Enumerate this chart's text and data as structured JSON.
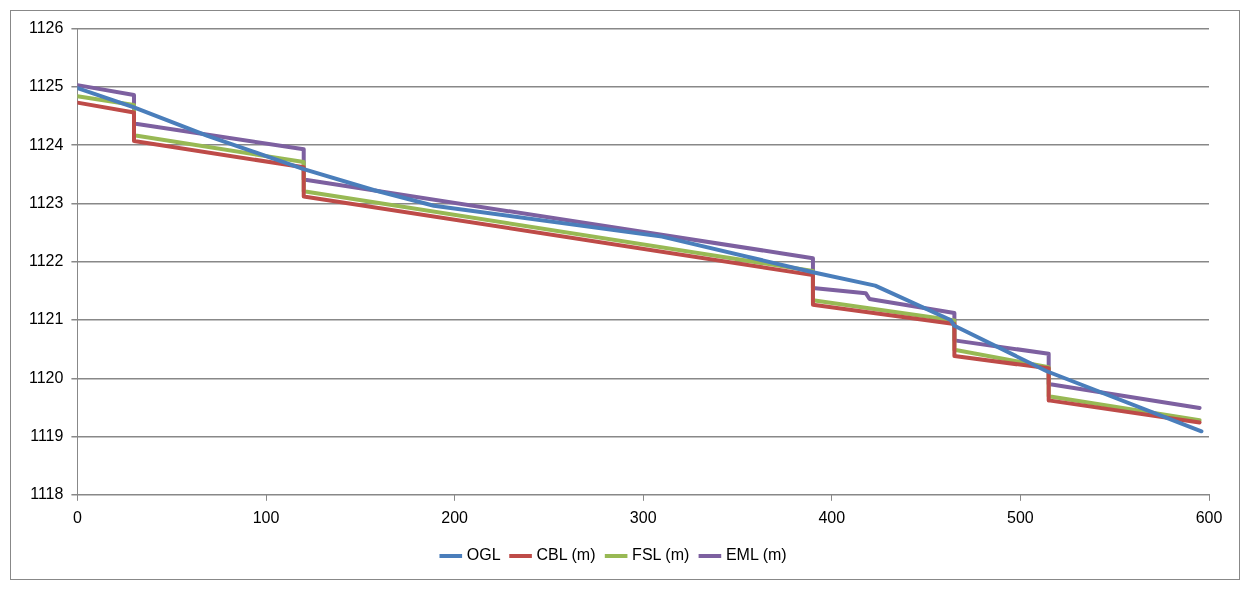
{
  "chart_data": {
    "type": "line",
    "legend": "bottom",
    "grid": "y",
    "marker": "none",
    "line_style": "solid",
    "xlim": [
      0,
      600
    ],
    "xticks": [
      0,
      100,
      200,
      300,
      400,
      500,
      600
    ],
    "ylim": [
      1118,
      1126
    ],
    "yticks": [
      1118,
      1119,
      1120,
      1121,
      1122,
      1123,
      1124,
      1125,
      1126
    ],
    "series": [
      {
        "name": "OGL",
        "color": "#4a7ebb",
        "x": [
          0,
          30,
          69,
          120,
          157,
          189,
          310,
          390,
          423,
          463,
          465,
          514,
          596
        ],
        "values": [
          1124.98,
          1124.65,
          1124.16,
          1123.59,
          1123.23,
          1122.96,
          1122.43,
          1121.82,
          1121.59,
          1121.0,
          1120.9,
          1120.12,
          1119.09
        ]
      },
      {
        "name": "CBL (m)",
        "color": "#be4b48",
        "x": [
          0,
          30,
          30,
          120,
          120,
          390,
          390,
          465,
          465,
          515,
          515,
          595
        ],
        "values": [
          1124.73,
          1124.56,
          1124.07,
          1123.62,
          1123.12,
          1121.77,
          1121.26,
          1120.93,
          1120.38,
          1120.17,
          1119.62,
          1119.24
        ]
      },
      {
        "name": "FSL (m)",
        "color": "#98b954",
        "x": [
          0,
          30,
          30,
          120,
          120,
          390,
          390,
          465,
          465,
          515,
          515,
          595
        ],
        "values": [
          1124.84,
          1124.69,
          1124.17,
          1123.71,
          1123.21,
          1121.84,
          1121.34,
          1120.99,
          1120.49,
          1120.19,
          1119.69,
          1119.28
        ]
      },
      {
        "name": "EML (m)",
        "color": "#7d60a0",
        "x": [
          0,
          30,
          30,
          120,
          120,
          390,
          390,
          418,
          420,
          465,
          465,
          515,
          515,
          595
        ],
        "values": [
          1125.03,
          1124.86,
          1124.37,
          1123.93,
          1123.41,
          1122.06,
          1121.55,
          1121.46,
          1121.36,
          1121.12,
          1120.65,
          1120.42,
          1119.9,
          1119.49
        ]
      }
    ]
  }
}
